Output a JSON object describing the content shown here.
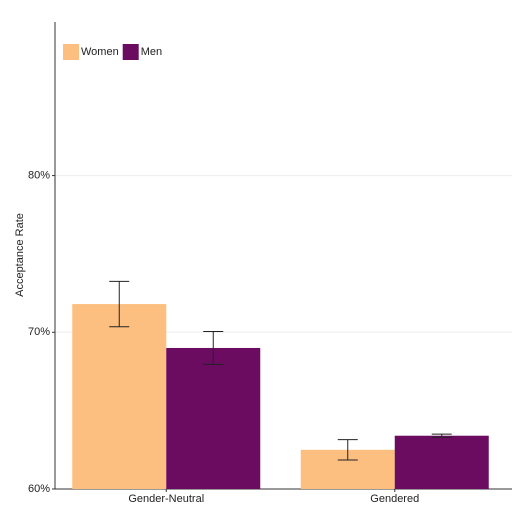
{
  "chart_data": {
    "type": "bar",
    "y_label": "Acceptance Rate",
    "categories": [
      "Gender-Neutral",
      "Gendered"
    ],
    "series": [
      {
        "name": "Women",
        "color": "#fdbf80",
        "values": [
          71.8,
          62.5
        ],
        "errors": [
          1.45,
          0.65
        ]
      },
      {
        "name": "Men",
        "color": "#6b0c60",
        "values": [
          69.0,
          63.4
        ],
        "errors": [
          1.05,
          0.1
        ]
      }
    ],
    "ylim": [
      60,
      89.8
    ],
    "yticks": [
      {
        "value": 60,
        "label": "60%"
      },
      {
        "value": 70,
        "label": "70%"
      },
      {
        "value": 80,
        "label": "80%"
      }
    ],
    "grid": true,
    "legend": "top-left"
  }
}
